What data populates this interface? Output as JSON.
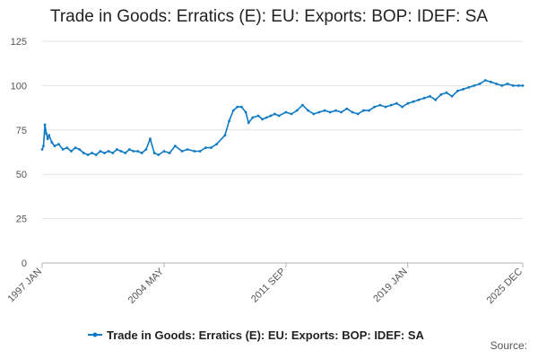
{
  "chart_data": {
    "type": "line",
    "title": "Trade in Goods: Erratics (E): EU: Exports: BOP: IDEF: SA",
    "xlabel": "",
    "ylabel": "",
    "ylim": [
      0,
      125
    ],
    "y_ticks": [
      0,
      25,
      50,
      75,
      100,
      125
    ],
    "x_range": [
      "1997-01",
      "2025-12"
    ],
    "x_ticks": [
      "1997 JAN",
      "2004 MAY",
      "2011 SEP",
      "2019 JAN",
      "2025 DEC"
    ],
    "x_tick_dates": [
      "1997-01",
      "2004-05",
      "2011-09",
      "2019-01",
      "2025-12"
    ],
    "grid": "horizontal",
    "legend_position": "bottom",
    "color": "#0e7ac4",
    "series": [
      {
        "name": "Trade in Goods: Erratics (E): EU: Exports: BOP: IDEF: SA",
        "points": [
          [
            "1997-01",
            64
          ],
          [
            "1997-02",
            66
          ],
          [
            "1997-03",
            78
          ],
          [
            "1997-04",
            73
          ],
          [
            "1997-05",
            70
          ],
          [
            "1997-06",
            72
          ],
          [
            "1997-08",
            68
          ],
          [
            "1997-10",
            66
          ],
          [
            "1998-01",
            67
          ],
          [
            "1998-04",
            64
          ],
          [
            "1998-07",
            65
          ],
          [
            "1998-10",
            63
          ],
          [
            "1999-01",
            65
          ],
          [
            "1999-04",
            64
          ],
          [
            "1999-07",
            62
          ],
          [
            "1999-10",
            61
          ],
          [
            "2000-01",
            62
          ],
          [
            "2000-04",
            61
          ],
          [
            "2000-07",
            63
          ],
          [
            "2000-10",
            62
          ],
          [
            "2001-01",
            63
          ],
          [
            "2001-04",
            62
          ],
          [
            "2001-07",
            64
          ],
          [
            "2001-10",
            63
          ],
          [
            "2002-01",
            62
          ],
          [
            "2002-04",
            64
          ],
          [
            "2002-07",
            63
          ],
          [
            "2002-10",
            63
          ],
          [
            "2003-01",
            62
          ],
          [
            "2003-04",
            64
          ],
          [
            "2003-07",
            70
          ],
          [
            "2003-10",
            62
          ],
          [
            "2004-01",
            61
          ],
          [
            "2004-05",
            63
          ],
          [
            "2004-09",
            62
          ],
          [
            "2005-01",
            66
          ],
          [
            "2005-06",
            63
          ],
          [
            "2005-10",
            64
          ],
          [
            "2006-03",
            63
          ],
          [
            "2006-07",
            63
          ],
          [
            "2006-11",
            65
          ],
          [
            "2007-03",
            65
          ],
          [
            "2007-07",
            67
          ],
          [
            "2008-01",
            72
          ],
          [
            "2008-04",
            80
          ],
          [
            "2008-07",
            86
          ],
          [
            "2008-10",
            88
          ],
          [
            "2009-01",
            88
          ],
          [
            "2009-04",
            85
          ],
          [
            "2009-06",
            79
          ],
          [
            "2009-09",
            82
          ],
          [
            "2010-01",
            83
          ],
          [
            "2010-04",
            81
          ],
          [
            "2010-07",
            82
          ],
          [
            "2010-10",
            83
          ],
          [
            "2011-01",
            84
          ],
          [
            "2011-04",
            83
          ],
          [
            "2011-09",
            85
          ],
          [
            "2012-01",
            84
          ],
          [
            "2012-05",
            86
          ],
          [
            "2012-09",
            89
          ],
          [
            "2013-01",
            86
          ],
          [
            "2013-05",
            84
          ],
          [
            "2013-09",
            85
          ],
          [
            "2014-01",
            86
          ],
          [
            "2014-05",
            85
          ],
          [
            "2014-09",
            86
          ],
          [
            "2015-01",
            85
          ],
          [
            "2015-05",
            87
          ],
          [
            "2015-09",
            85
          ],
          [
            "2016-01",
            84
          ],
          [
            "2016-05",
            86
          ],
          [
            "2016-09",
            86
          ],
          [
            "2017-01",
            88
          ],
          [
            "2017-05",
            89
          ],
          [
            "2017-09",
            88
          ],
          [
            "2018-01",
            89
          ],
          [
            "2018-05",
            90
          ],
          [
            "2018-09",
            88
          ],
          [
            "2019-01",
            90
          ],
          [
            "2019-05",
            91
          ],
          [
            "2019-09",
            92
          ],
          [
            "2020-01",
            93
          ],
          [
            "2020-05",
            94
          ],
          [
            "2020-09",
            92
          ],
          [
            "2021-01",
            95
          ],
          [
            "2021-05",
            96
          ],
          [
            "2021-09",
            94
          ],
          [
            "2022-01",
            97
          ],
          [
            "2022-05",
            98
          ],
          [
            "2022-09",
            99
          ],
          [
            "2023-01",
            100
          ],
          [
            "2023-05",
            101
          ],
          [
            "2023-09",
            103
          ],
          [
            "2024-01",
            102
          ],
          [
            "2024-05",
            101
          ],
          [
            "2024-09",
            100
          ],
          [
            "2025-01",
            101
          ],
          [
            "2025-05",
            100
          ],
          [
            "2025-09",
            100
          ],
          [
            "2025-12",
            100
          ]
        ]
      }
    ],
    "source_label": "Source:"
  }
}
